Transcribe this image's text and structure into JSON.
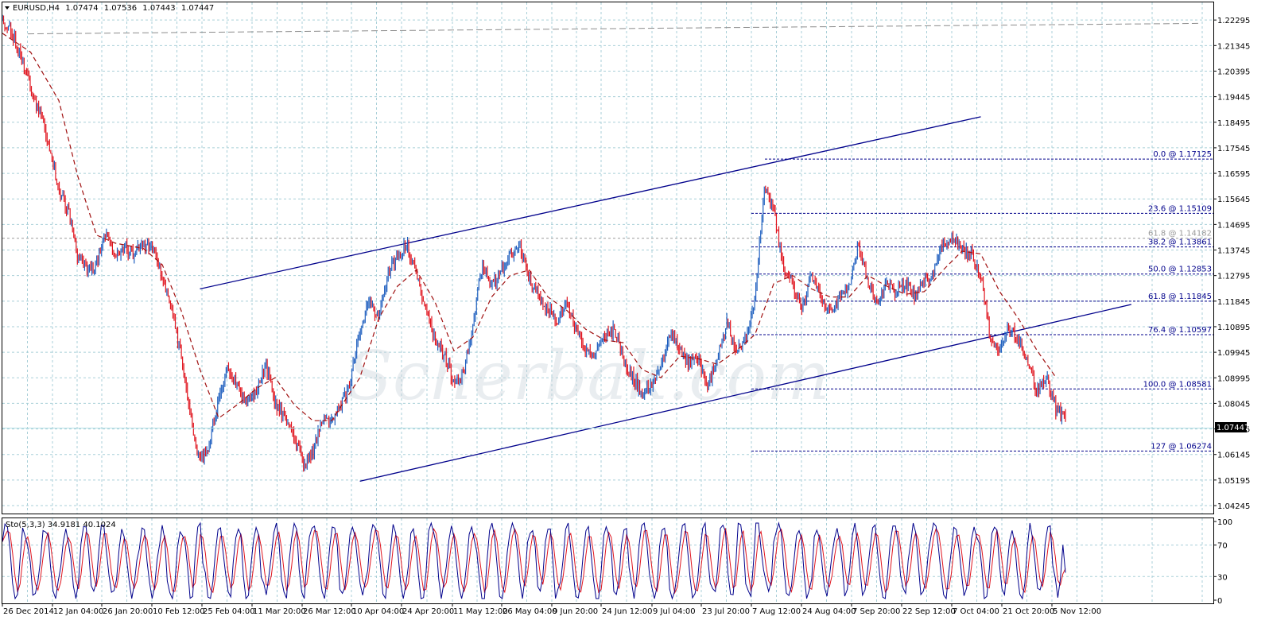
{
  "window": {
    "symbol_label": "EURUSD,H4",
    "open": "1.07474",
    "high": "1.07536",
    "low": "1.07443",
    "close": "1.07447"
  },
  "watermark": "Scherbak.com",
  "colors": {
    "background": "#ffffff",
    "grid": "#a8cfd8",
    "bull_candle": "#1f5fbf",
    "bear_candle": "#e0141e",
    "moving_average": "#a01010",
    "trendline": "#00008b",
    "fibonacci": "#00008b",
    "stoch_main": "#00008b",
    "stoch_signal": "#e0141e",
    "price_tag_bg": "#000000"
  },
  "chart_data": [
    {
      "type": "candlestick",
      "symbol": "EURUSD",
      "timeframe": "H4",
      "x_tick_labels": [
        "26 Dec 2014",
        "12 Jan 04:00",
        "26 Jan 20:00",
        "10 Feb 12:00",
        "25 Feb 04:00",
        "11 Mar 20:00",
        "26 Mar 12:00",
        "10 Apr 04:00",
        "24 Apr 20:00",
        "11 May 12:00",
        "26 May 04:00",
        "9 Jun 20:00",
        "24 Jun 12:00",
        "9 Jul 04:00",
        "23 Jul 20:00",
        "7 Aug 12:00",
        "24 Aug 04:00",
        "7 Sep 20:00",
        "22 Sep 12:00",
        "7 Oct 04:00",
        "21 Oct 20:00",
        "5 Nov 12:00"
      ],
      "y_tick_labels": [
        "1.22295",
        "1.21345",
        "1.20395",
        "1.19445",
        "1.18495",
        "1.17545",
        "1.16595",
        "1.15645",
        "1.14695",
        "1.13745",
        "1.12795",
        "1.11845",
        "1.10895",
        "1.09945",
        "1.08995",
        "1.08045",
        "1.07095",
        "1.06145",
        "1.05195",
        "1.04245"
      ],
      "ylim": [
        1.04,
        1.2295
      ],
      "current_price": "1.07447",
      "price_path": [
        [
          0,
          1.223
        ],
        [
          1,
          1.218
        ],
        [
          2,
          1.209
        ],
        [
          3,
          1.197
        ],
        [
          4,
          1.188
        ],
        [
          5,
          1.176
        ],
        [
          6,
          1.16
        ],
        [
          7,
          1.152
        ],
        [
          8,
          1.135
        ],
        [
          9,
          1.13
        ],
        [
          10,
          1.132
        ],
        [
          11,
          1.145
        ],
        [
          12,
          1.134
        ],
        [
          13,
          1.138
        ],
        [
          14,
          1.136
        ],
        [
          15,
          1.14
        ],
        [
          16,
          1.138
        ],
        [
          17,
          1.127
        ],
        [
          18,
          1.115
        ],
        [
          19,
          1.098
        ],
        [
          20,
          1.075
        ],
        [
          21,
          1.058
        ],
        [
          22,
          1.065
        ],
        [
          23,
          1.082
        ],
        [
          24,
          1.095
        ],
        [
          25,
          1.087
        ],
        [
          26,
          1.08
        ],
        [
          27,
          1.085
        ],
        [
          28,
          1.095
        ],
        [
          29,
          1.08
        ],
        [
          30,
          1.075
        ],
        [
          31,
          1.068
        ],
        [
          32,
          1.058
        ],
        [
          33,
          1.062
        ],
        [
          34,
          1.075
        ],
        [
          35,
          1.073
        ],
        [
          36,
          1.08
        ],
        [
          37,
          1.088
        ],
        [
          38,
          1.108
        ],
        [
          39,
          1.12
        ],
        [
          40,
          1.112
        ],
        [
          41,
          1.13
        ],
        [
          42,
          1.135
        ],
        [
          43,
          1.14
        ],
        [
          44,
          1.128
        ],
        [
          45,
          1.115
        ],
        [
          46,
          1.105
        ],
        [
          47,
          1.098
        ],
        [
          48,
          1.088
        ],
        [
          49,
          1.092
        ],
        [
          50,
          1.11
        ],
        [
          51,
          1.132
        ],
        [
          52,
          1.124
        ],
        [
          53,
          1.13
        ],
        [
          54,
          1.135
        ],
        [
          55,
          1.14
        ],
        [
          56,
          1.126
        ],
        [
          57,
          1.12
        ],
        [
          58,
          1.115
        ],
        [
          59,
          1.112
        ],
        [
          60,
          1.118
        ],
        [
          61,
          1.108
        ],
        [
          62,
          1.1
        ],
        [
          63,
          1.098
        ],
        [
          64,
          1.105
        ],
        [
          65,
          1.108
        ],
        [
          66,
          1.097
        ],
        [
          67,
          1.09
        ],
        [
          68,
          1.084
        ],
        [
          69,
          1.088
        ],
        [
          70,
          1.095
        ],
        [
          71,
          1.108
        ],
        [
          72,
          1.1
        ],
        [
          73,
          1.095
        ],
        [
          74,
          1.097
        ],
        [
          75,
          1.087
        ],
        [
          76,
          1.097
        ],
        [
          77,
          1.11
        ],
        [
          78,
          1.1
        ],
        [
          79,
          1.105
        ],
        [
          80,
          1.12
        ],
        [
          81,
          1.16
        ],
        [
          82,
          1.152
        ],
        [
          83,
          1.13
        ],
        [
          84,
          1.125
        ],
        [
          85,
          1.115
        ],
        [
          86,
          1.128
        ],
        [
          87,
          1.12
        ],
        [
          88,
          1.115
        ],
        [
          89,
          1.12
        ],
        [
          90,
          1.125
        ],
        [
          91,
          1.14
        ],
        [
          92,
          1.125
        ],
        [
          93,
          1.118
        ],
        [
          94,
          1.125
        ],
        [
          95,
          1.122
        ],
        [
          96,
          1.125
        ],
        [
          97,
          1.12
        ],
        [
          98,
          1.125
        ],
        [
          99,
          1.13
        ],
        [
          100,
          1.14
        ],
        [
          101,
          1.142
        ],
        [
          102,
          1.138
        ],
        [
          103,
          1.136
        ],
        [
          104,
          1.128
        ],
        [
          105,
          1.105
        ],
        [
          106,
          1.1
        ],
        [
          107,
          1.108
        ],
        [
          108,
          1.105
        ],
        [
          109,
          1.095
        ],
        [
          110,
          1.085
        ],
        [
          111,
          1.09
        ],
        [
          112,
          1.078
        ],
        [
          113,
          1.075
        ]
      ],
      "moving_average_dashed": [
        [
          0,
          1.218
        ],
        [
          3,
          1.211
        ],
        [
          6,
          1.193
        ],
        [
          8,
          1.165
        ],
        [
          10,
          1.143
        ],
        [
          12,
          1.14
        ],
        [
          15,
          1.138
        ],
        [
          17,
          1.132
        ],
        [
          19,
          1.115
        ],
        [
          21,
          1.093
        ],
        [
          23,
          1.075
        ],
        [
          25,
          1.08
        ],
        [
          27,
          1.086
        ],
        [
          29,
          1.09
        ],
        [
          31,
          1.08
        ],
        [
          33,
          1.074
        ],
        [
          35,
          1.074
        ],
        [
          38,
          1.09
        ],
        [
          40,
          1.112
        ],
        [
          42,
          1.124
        ],
        [
          44,
          1.13
        ],
        [
          46,
          1.118
        ],
        [
          48,
          1.1
        ],
        [
          50,
          1.105
        ],
        [
          52,
          1.12
        ],
        [
          54,
          1.128
        ],
        [
          56,
          1.13
        ],
        [
          58,
          1.12
        ],
        [
          60,
          1.115
        ],
        [
          62,
          1.108
        ],
        [
          64,
          1.104
        ],
        [
          66,
          1.103
        ],
        [
          68,
          1.093
        ],
        [
          70,
          1.09
        ],
        [
          72,
          1.098
        ],
        [
          74,
          1.097
        ],
        [
          76,
          1.095
        ],
        [
          78,
          1.1
        ],
        [
          80,
          1.106
        ],
        [
          82,
          1.125
        ],
        [
          84,
          1.128
        ],
        [
          86,
          1.123
        ],
        [
          88,
          1.12
        ],
        [
          90,
          1.12
        ],
        [
          92,
          1.128
        ],
        [
          94,
          1.124
        ],
        [
          96,
          1.121
        ],
        [
          98,
          1.122
        ],
        [
          100,
          1.13
        ],
        [
          102,
          1.137
        ],
        [
          104,
          1.136
        ],
        [
          106,
          1.122
        ],
        [
          108,
          1.112
        ],
        [
          110,
          1.1
        ],
        [
          112,
          1.09
        ]
      ],
      "long_ma_dashed": [
        [
          0,
          1.2178
        ],
        [
          113,
          1.2217
        ]
      ],
      "fibonacci_levels": [
        {
          "label": "0.0 @ 1.17125",
          "price": 1.17125
        },
        {
          "label": "23.6 @ 1.15109",
          "price": 1.15109
        },
        {
          "label": "38.2 @ 1.13861",
          "price": 1.13861
        },
        {
          "label": "50.0 @ 1.12853",
          "price": 1.12853
        },
        {
          "label": "61.8 @ 1.11845",
          "price": 1.11845
        },
        {
          "label": "76.4 @ 1.10597",
          "price": 1.10597
        },
        {
          "label": "100.0 @ 1.08581",
          "price": 1.08581
        },
        {
          "label": "127 @ 1.06274",
          "price": 1.06274
        }
      ],
      "extra_level": {
        "label": "61.8 @ 1.14182",
        "price": 1.14182
      },
      "trendlines": [
        {
          "name": "channel-upper",
          "from": [
            21,
            1.123
          ],
          "to": [
            104,
            1.187
          ]
        },
        {
          "name": "channel-lower-support",
          "from": [
            38,
            1.0515
          ],
          "to": [
            120,
            1.1172
          ]
        }
      ]
    },
    {
      "type": "line",
      "indicator_label": "Sto(5,3,3) 34.9181 40.1024",
      "y_tick_labels": [
        "100",
        "70",
        "30",
        "0"
      ],
      "levels": [
        70,
        30
      ],
      "ylim": [
        0,
        100
      ],
      "series": [
        {
          "name": "main",
          "value": 34.9181
        },
        {
          "name": "signal",
          "value": 40.1024
        }
      ]
    }
  ]
}
